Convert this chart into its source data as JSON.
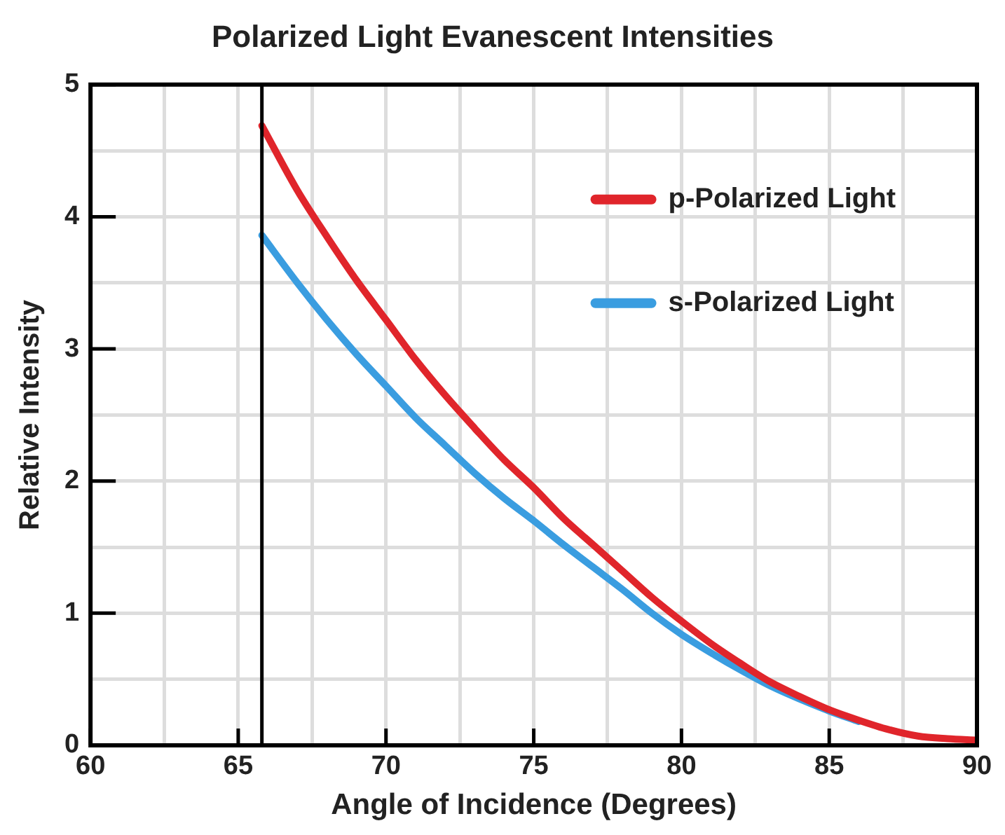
{
  "chart_data": {
    "type": "line",
    "title": "Polarized Light Evanescent Intensities",
    "xlabel": "Angle of Incidence (Degrees)",
    "ylabel": "Relative Intensity",
    "xlim": [
      60,
      90
    ],
    "xticks": [
      60,
      {
        "value": 62.5,
        "label": null
      },
      65,
      {
        "value": 67.5,
        "label": null
      },
      70,
      {
        "value": 72.5,
        "label": null
      },
      75,
      {
        "value": 77.5,
        "label": null
      },
      80,
      {
        "value": 82.5,
        "label": null
      },
      85,
      {
        "value": 87.5,
        "label": null
      },
      90
    ],
    "ylim": [
      0,
      5
    ],
    "yticks": [
      0,
      {
        "value": 0.5,
        "label": null
      },
      1,
      {
        "value": 1.5,
        "label": null
      },
      2,
      {
        "value": 2.5,
        "label": null
      },
      3,
      {
        "value": 3.5,
        "label": null
      },
      4,
      {
        "value": 4.5,
        "label": null
      },
      5
    ],
    "grid": true,
    "legend": "top right",
    "marker": "none",
    "line_style": "solid",
    "ref_lines": [
      {
        "axis": "x",
        "value": 65.8,
        "color": "#000000"
      }
    ],
    "series": [
      {
        "name": "p-Polarized Light",
        "color": "#e0252b",
        "x": [
          65.8,
          67,
          68,
          69,
          70,
          71,
          72,
          73,
          74,
          75,
          76,
          77,
          78,
          79,
          80,
          81,
          82,
          83,
          84,
          85,
          86,
          87,
          88,
          89,
          90
        ],
        "values": [
          4.69,
          4.2,
          3.85,
          3.52,
          3.22,
          2.92,
          2.65,
          2.4,
          2.16,
          1.95,
          1.72,
          1.52,
          1.32,
          1.12,
          0.94,
          0.77,
          0.62,
          0.48,
          0.37,
          0.27,
          0.19,
          0.12,
          0.07,
          0.05,
          0.04
        ]
      },
      {
        "name": "s-Polarized Light",
        "color": "#3a9de0",
        "x": [
          65.8,
          67,
          68,
          69,
          70,
          71,
          72,
          73,
          74,
          75,
          76,
          77,
          78,
          79,
          80,
          81,
          82,
          83,
          84,
          85,
          86
        ],
        "values": [
          3.86,
          3.5,
          3.22,
          2.96,
          2.72,
          2.48,
          2.27,
          2.06,
          1.87,
          1.7,
          1.52,
          1.35,
          1.18,
          1.0,
          0.84,
          0.7,
          0.57,
          0.45,
          0.35,
          0.26,
          0.18
        ]
      }
    ]
  }
}
